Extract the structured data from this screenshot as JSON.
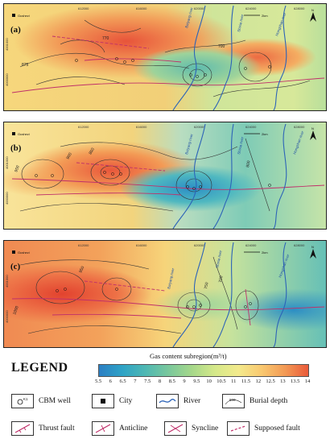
{
  "x_ticks": [
    "612000",
    "616000",
    "620000",
    "624000",
    "628000"
  ],
  "y_ticks": [
    "4001000",
    "4000000"
  ],
  "city": "Gushezi",
  "scale_unit": "2km",
  "north": "N",
  "rivers": {
    "baiyang": "Baiyang river",
    "shixia": "Shixia river",
    "hongshan": "Hongshan river"
  },
  "panels": [
    {
      "label": "(a)",
      "contour_labels": [
        "500",
        "700",
        "875",
        "770"
      ]
    },
    {
      "label": "(b)",
      "contour_labels": [
        "950",
        "900",
        "850",
        "800"
      ]
    },
    {
      "label": "(c)",
      "contour_labels": [
        "1000",
        "950",
        "700",
        "750"
      ]
    }
  ],
  "legend": {
    "title": "LEGEND",
    "colorbar_title": "Gas content subregion(m³/t)",
    "colorbar_ticks": [
      "5.5",
      "6",
      "6.5",
      "7",
      "7.5",
      "8",
      "8.5",
      "9",
      "9.5",
      "10",
      "10.5",
      "11",
      "11.5",
      "12",
      "12.5",
      "13",
      "13.5",
      "14"
    ],
    "colorbar_colors": [
      "#2b7fc4",
      "#2ea3c6",
      "#4fb8b3",
      "#7ac89c",
      "#a6d88a",
      "#d6e98a",
      "#f3ea8c",
      "#f9c870",
      "#f39a55",
      "#ea5a3a"
    ],
    "items": [
      {
        "key": "well",
        "label": "CBM well",
        "sample": "K1"
      },
      {
        "key": "city",
        "label": "City"
      },
      {
        "key": "river",
        "label": "River"
      },
      {
        "key": "burial",
        "label": "Burial depth",
        "sample": "800"
      },
      {
        "key": "thrust",
        "label": "Thrust fault"
      },
      {
        "key": "anticline",
        "label": "Anticline"
      },
      {
        "key": "syncline",
        "label": "Syncline"
      },
      {
        "key": "supposed",
        "label": "Supposed fault"
      }
    ]
  }
}
